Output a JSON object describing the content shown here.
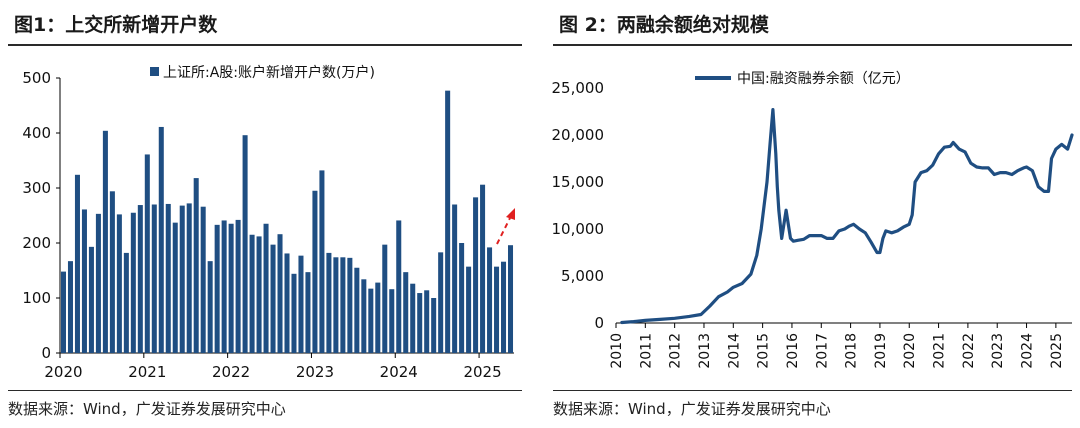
{
  "left": {
    "title": "图1：上交所新增开户数",
    "source": "数据来源：Wind，广发证券发展研究中心"
  },
  "right": {
    "title": "图 2：两融余额绝对规模",
    "source": "数据来源：Wind，广发证券发展研究中心"
  },
  "chart_data": [
    {
      "type": "bar",
      "title": "图1：上交所新增开户数",
      "legend": "上证所:A股:账户新增开户数(万户)",
      "legend_position": "top",
      "color": "#1f4e82",
      "ylim": [
        0,
        500
      ],
      "yticks": [
        "0",
        "100",
        "200",
        "300",
        "400",
        "500"
      ],
      "xticks": [
        "2020",
        "2021",
        "2022",
        "2023",
        "2024",
        "2025"
      ],
      "start": "2020-01",
      "values": [
        148,
        167,
        324,
        261,
        193,
        253,
        404,
        294,
        252,
        182,
        255,
        269,
        361,
        270,
        411,
        271,
        237,
        268,
        272,
        318,
        266,
        167,
        233,
        241,
        235,
        242,
        396,
        215,
        212,
        235,
        197,
        216,
        181,
        144,
        177,
        147,
        295,
        332,
        182,
        174,
        174,
        173,
        155,
        134,
        117,
        128,
        197,
        116,
        241,
        147,
        126,
        109,
        114,
        100,
        183,
        477,
        270,
        200,
        157,
        283,
        306,
        192,
        157,
        166,
        196
      ],
      "annotation": "dashed red upward arrow near latest bars",
      "annotation_color": "#e02020",
      "grid": false
    },
    {
      "type": "line",
      "title": "图 2：两融余额绝对规模",
      "legend": "中国:融资融券余额（亿元）",
      "legend_position": "top",
      "color": "#1f4e82",
      "ylim": [
        0,
        25000
      ],
      "yticks": [
        "0",
        "5,000",
        "10,000",
        "15,000",
        "20,000",
        "25,000"
      ],
      "xticks": [
        "2010",
        "2011",
        "2012",
        "2013",
        "2014",
        "2015",
        "2016",
        "2017",
        "2018",
        "2019",
        "2020",
        "2021",
        "2022",
        "2023",
        "2024",
        "2025"
      ],
      "x": [
        2010.2,
        2010.6,
        2011.0,
        2011.5,
        2012.0,
        2012.5,
        2012.9,
        2013.2,
        2013.5,
        2013.8,
        2014.0,
        2014.3,
        2014.6,
        2014.8,
        2014.95,
        2015.05,
        2015.15,
        2015.25,
        2015.35,
        2015.45,
        2015.5,
        2015.55,
        2015.65,
        2015.8,
        2015.95,
        2016.05,
        2016.2,
        2016.4,
        2016.6,
        2016.8,
        2017.0,
        2017.2,
        2017.4,
        2017.6,
        2017.8,
        2017.95,
        2018.1,
        2018.3,
        2018.5,
        2018.7,
        2018.9,
        2019.0,
        2019.1,
        2019.2,
        2019.4,
        2019.6,
        2019.8,
        2020.0,
        2020.1,
        2020.2,
        2020.4,
        2020.6,
        2020.8,
        2021.0,
        2021.2,
        2021.4,
        2021.5,
        2021.7,
        2021.9,
        2022.1,
        2022.3,
        2022.5,
        2022.7,
        2022.9,
        2023.1,
        2023.3,
        2023.5,
        2023.7,
        2023.9,
        2024.0,
        2024.2,
        2024.4,
        2024.6,
        2024.75,
        2024.85,
        2025.0,
        2025.2,
        2025.4,
        2025.55
      ],
      "values": [
        50,
        150,
        280,
        380,
        500,
        700,
        900,
        1800,
        2800,
        3300,
        3800,
        4200,
        5200,
        7200,
        10000,
        12500,
        15000,
        19000,
        22700,
        18000,
        14500,
        12000,
        9000,
        12000,
        9000,
        8700,
        8800,
        8900,
        9300,
        9300,
        9300,
        9000,
        9000,
        9800,
        10000,
        10300,
        10500,
        10000,
        9600,
        8600,
        7500,
        7500,
        9000,
        9800,
        9600,
        9800,
        10200,
        10500,
        11500,
        15000,
        16000,
        16200,
        16800,
        18000,
        18700,
        18800,
        19200,
        18500,
        18200,
        17000,
        16600,
        16500,
        16500,
        15800,
        16000,
        16000,
        15800,
        16200,
        16500,
        16600,
        16200,
        14500,
        14000,
        14000,
        17500,
        18500,
        19000,
        18500,
        20000
      ],
      "grid": false
    }
  ]
}
